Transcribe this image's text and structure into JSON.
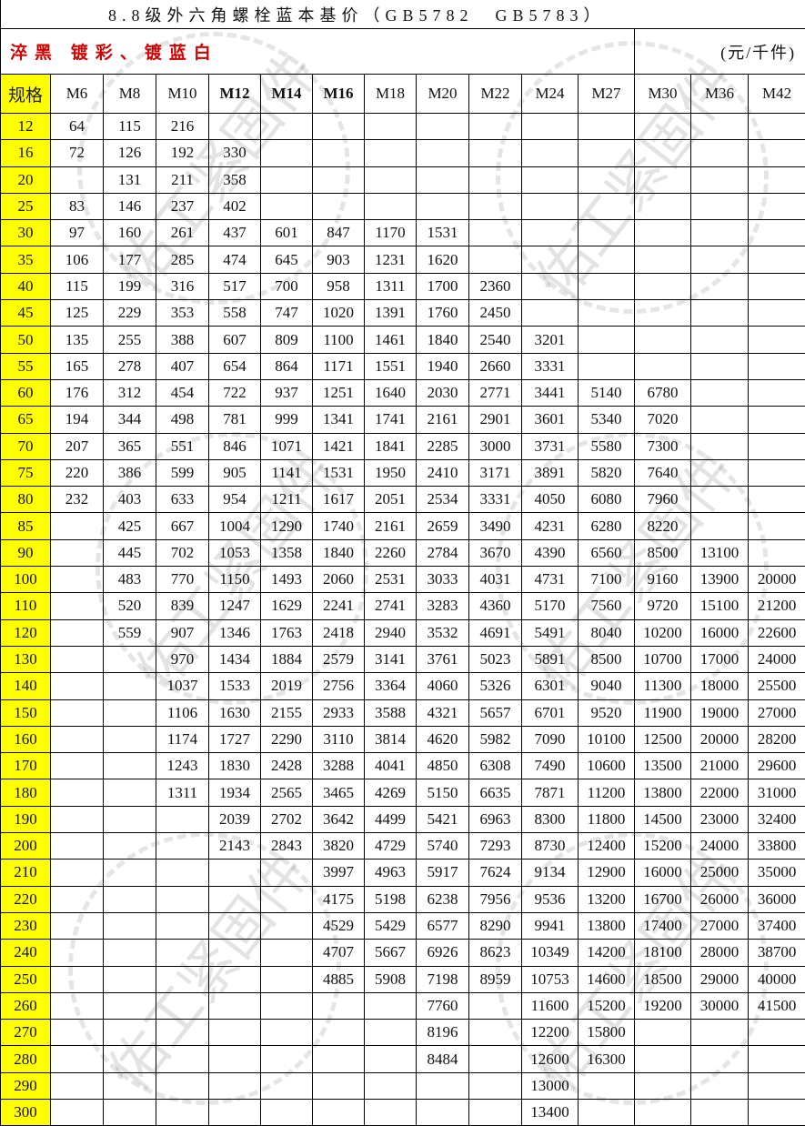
{
  "title": "8.8级外六角螺栓蓝本基价（GB5782　GB5783）",
  "subtitle": "淬黑 镀彩、镀蓝白",
  "unit": "(元/千件)",
  "watermark": "佑工紧固件",
  "table": {
    "header": [
      "规格",
      "M6",
      "M8",
      "M10",
      "M12",
      "M14",
      "M16",
      "M18",
      "M20",
      "M22",
      "M24",
      "M27",
      "M30",
      "M36",
      "M42"
    ],
    "rows": [
      [
        12,
        64,
        115,
        216,
        null,
        null,
        null,
        null,
        null,
        null,
        null,
        null,
        null,
        null,
        null
      ],
      [
        16,
        72,
        126,
        192,
        330,
        null,
        null,
        null,
        null,
        null,
        null,
        null,
        null,
        null,
        null
      ],
      [
        20,
        null,
        131,
        211,
        358,
        null,
        null,
        null,
        null,
        null,
        null,
        null,
        null,
        null,
        null
      ],
      [
        25,
        83,
        146,
        237,
        402,
        null,
        null,
        null,
        null,
        null,
        null,
        null,
        null,
        null,
        null
      ],
      [
        30,
        97,
        160,
        261,
        437,
        601,
        847,
        1170,
        1531,
        null,
        null,
        null,
        null,
        null,
        null
      ],
      [
        35,
        106,
        177,
        285,
        474,
        645,
        903,
        1231,
        1620,
        null,
        null,
        null,
        null,
        null,
        null
      ],
      [
        40,
        115,
        199,
        316,
        517,
        700,
        958,
        1311,
        1700,
        2360,
        null,
        null,
        null,
        null,
        null
      ],
      [
        45,
        125,
        229,
        353,
        558,
        747,
        1020,
        1391,
        1760,
        2450,
        null,
        null,
        null,
        null,
        null
      ],
      [
        50,
        135,
        255,
        388,
        607,
        809,
        1100,
        1461,
        1840,
        2540,
        3201,
        null,
        null,
        null,
        null
      ],
      [
        55,
        165,
        278,
        407,
        654,
        864,
        1171,
        1551,
        1940,
        2660,
        3331,
        null,
        null,
        null,
        null
      ],
      [
        60,
        176,
        312,
        454,
        722,
        937,
        1251,
        1640,
        2030,
        2771,
        3441,
        5140,
        6780,
        null,
        null
      ],
      [
        65,
        194,
        344,
        498,
        781,
        999,
        1341,
        1741,
        2161,
        2901,
        3601,
        5340,
        7020,
        null,
        null
      ],
      [
        70,
        207,
        365,
        551,
        846,
        1071,
        1421,
        1841,
        2285,
        3000,
        3731,
        5580,
        7300,
        null,
        null
      ],
      [
        75,
        220,
        386,
        599,
        905,
        1141,
        1531,
        1950,
        2410,
        3171,
        3891,
        5820,
        7640,
        null,
        null
      ],
      [
        80,
        232,
        403,
        633,
        954,
        1211,
        1617,
        2051,
        2534,
        3331,
        4050,
        6080,
        7960,
        null,
        null
      ],
      [
        85,
        null,
        425,
        667,
        1004,
        1290,
        1740,
        2161,
        2659,
        3490,
        4231,
        6280,
        8220,
        null,
        null
      ],
      [
        90,
        null,
        445,
        702,
        1053,
        1358,
        1840,
        2260,
        2784,
        3670,
        4390,
        6560,
        8500,
        13100,
        null
      ],
      [
        100,
        null,
        483,
        770,
        1150,
        1493,
        2060,
        2531,
        3033,
        4031,
        4731,
        7100,
        9160,
        13900,
        20000
      ],
      [
        110,
        null,
        520,
        839,
        1247,
        1629,
        2241,
        2741,
        3283,
        4360,
        5170,
        7560,
        9720,
        15100,
        21200
      ],
      [
        120,
        null,
        559,
        907,
        1346,
        1763,
        2418,
        2940,
        3532,
        4691,
        5491,
        8040,
        10200,
        16000,
        22600
      ],
      [
        130,
        null,
        null,
        970,
        1434,
        1884,
        2579,
        3141,
        3761,
        5023,
        5891,
        8500,
        10700,
        17000,
        24000
      ],
      [
        140,
        null,
        null,
        1037,
        1533,
        2019,
        2756,
        3364,
        4060,
        5326,
        6301,
        9040,
        11300,
        18000,
        25500
      ],
      [
        150,
        null,
        null,
        1106,
        1630,
        2155,
        2933,
        3588,
        4321,
        5657,
        6701,
        9520,
        11900,
        19000,
        27000
      ],
      [
        160,
        null,
        null,
        1174,
        1727,
        2290,
        3110,
        3814,
        4620,
        5982,
        7090,
        10100,
        12500,
        20000,
        28200
      ],
      [
        170,
        null,
        null,
        1243,
        1830,
        2428,
        3288,
        4041,
        4850,
        6308,
        7490,
        10600,
        13500,
        21000,
        29600
      ],
      [
        180,
        null,
        null,
        1311,
        1934,
        2565,
        3465,
        4269,
        5150,
        6635,
        7871,
        11200,
        13800,
        22000,
        31000
      ],
      [
        190,
        null,
        null,
        null,
        2039,
        2702,
        3642,
        4499,
        5421,
        6963,
        8300,
        11800,
        14500,
        23000,
        32400
      ],
      [
        200,
        null,
        null,
        null,
        2143,
        2843,
        3820,
        4729,
        5740,
        7293,
        8730,
        12400,
        15200,
        24000,
        33800
      ],
      [
        210,
        null,
        null,
        null,
        null,
        null,
        3997,
        4963,
        5917,
        7624,
        9134,
        12900,
        16000,
        25000,
        35000
      ],
      [
        220,
        null,
        null,
        null,
        null,
        null,
        4175,
        5198,
        6238,
        7956,
        9536,
        13200,
        16700,
        26000,
        36000
      ],
      [
        230,
        null,
        null,
        null,
        null,
        null,
        4529,
        5429,
        6577,
        8290,
        9941,
        13800,
        17400,
        27000,
        37400
      ],
      [
        240,
        null,
        null,
        null,
        null,
        null,
        4707,
        5667,
        6926,
        8623,
        10349,
        14200,
        18100,
        28000,
        38700
      ],
      [
        250,
        null,
        null,
        null,
        null,
        null,
        4885,
        5908,
        7198,
        8959,
        10753,
        14600,
        18500,
        29000,
        40000
      ],
      [
        260,
        null,
        null,
        null,
        null,
        null,
        null,
        null,
        7760,
        null,
        11600,
        15200,
        19200,
        30000,
        41500
      ],
      [
        270,
        null,
        null,
        null,
        null,
        null,
        null,
        null,
        8196,
        null,
        12200,
        15800,
        null,
        null,
        null
      ],
      [
        280,
        null,
        null,
        null,
        null,
        null,
        null,
        null,
        8484,
        null,
        12600,
        16300,
        null,
        null,
        null
      ],
      [
        290,
        null,
        null,
        null,
        null,
        null,
        null,
        null,
        null,
        null,
        13000,
        null,
        null,
        null,
        null
      ],
      [
        300,
        null,
        null,
        null,
        null,
        null,
        null,
        null,
        null,
        null,
        13400,
        null,
        null,
        null,
        null
      ]
    ]
  }
}
